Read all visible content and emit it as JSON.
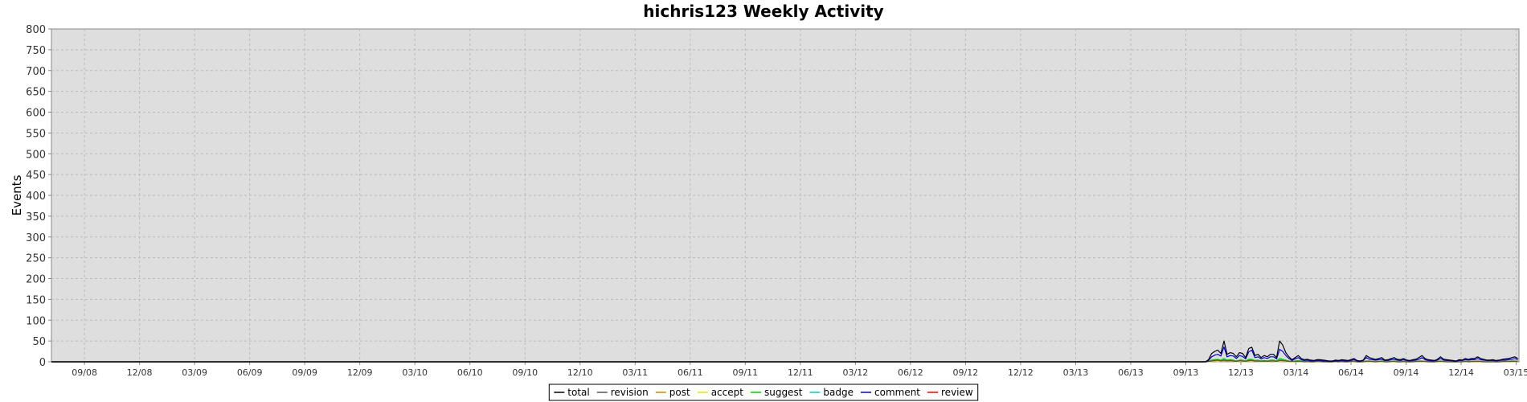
{
  "chart_data": {
    "type": "line",
    "title": "hichris123 Weekly Activity",
    "xlabel": "",
    "ylabel": "Events",
    "ylim": [
      0,
      800
    ],
    "y_ticks": [
      0,
      50,
      100,
      150,
      200,
      250,
      300,
      350,
      400,
      450,
      500,
      550,
      600,
      650,
      700,
      750,
      800
    ],
    "x_tick_labels": [
      "09/08",
      "12/08",
      "03/09",
      "06/09",
      "09/09",
      "12/09",
      "03/10",
      "06/10",
      "09/10",
      "12/10",
      "03/11",
      "06/11",
      "09/11",
      "12/11",
      "03/12",
      "06/12",
      "09/12",
      "12/12",
      "03/13",
      "06/13",
      "09/13",
      "12/13",
      "03/14",
      "06/14",
      "09/14",
      "12/14",
      "03/15"
    ],
    "grid": true,
    "legend_placement": "bottom",
    "x_quarter_range": [
      -0.6,
      26.05
    ],
    "activity_start_quarter": 20.3,
    "series": [
      {
        "name": "total",
        "color": "#000000",
        "values": [
          0,
          0,
          5,
          20,
          25,
          28,
          20,
          50,
          18,
          22,
          20,
          12,
          22,
          20,
          10,
          32,
          35,
          15,
          18,
          10,
          15,
          12,
          18,
          18,
          10,
          50,
          40,
          22,
          12,
          5,
          10,
          15,
          8,
          5,
          6,
          4,
          3,
          5,
          5,
          4,
          3,
          2,
          2,
          4,
          3,
          5,
          4,
          3,
          5,
          8,
          3,
          2,
          4,
          15,
          10,
          8,
          6,
          8,
          10,
          4,
          5,
          8,
          10,
          6,
          5,
          8,
          4,
          3,
          5,
          6,
          10,
          15,
          8,
          5,
          4,
          3,
          6,
          12,
          6,
          5,
          4,
          3,
          2,
          5,
          4,
          8,
          6,
          8,
          8,
          12,
          8,
          6,
          4,
          4,
          5,
          3,
          4,
          6,
          7,
          8,
          10,
          12,
          8
        ]
      },
      {
        "name": "revision",
        "color": "#555555",
        "values": [
          0,
          0,
          1,
          2,
          3,
          4,
          2,
          4,
          2,
          3,
          2,
          1,
          3,
          2,
          1,
          3,
          3,
          2,
          2,
          1,
          2,
          1,
          2,
          2,
          1,
          3,
          3,
          2,
          1,
          1,
          1,
          1,
          1,
          0,
          1,
          0,
          0,
          1,
          1,
          0,
          0,
          0,
          0,
          1,
          0,
          1,
          0,
          0,
          1,
          1,
          0,
          0,
          0,
          1,
          1,
          1,
          0,
          1,
          1,
          0,
          0,
          1,
          1,
          0,
          0,
          1,
          0,
          0,
          0,
          1,
          1,
          1,
          1,
          0,
          0,
          0,
          1,
          1,
          1,
          0,
          0,
          0,
          0,
          0,
          0,
          1,
          0,
          1,
          1,
          1,
          1,
          0,
          0,
          0,
          0,
          0,
          0,
          1,
          1,
          1,
          1,
          1,
          1
        ]
      },
      {
        "name": "post",
        "color": "#cc8800",
        "values": [
          0,
          0,
          1,
          2,
          2,
          3,
          2,
          3,
          2,
          2,
          2,
          1,
          2,
          2,
          1,
          2,
          3,
          1,
          2,
          1,
          1,
          1,
          2,
          2,
          1,
          3,
          2,
          2,
          1,
          1,
          1,
          1,
          1,
          0,
          1,
          0,
          0,
          1,
          1,
          0,
          0,
          0,
          0,
          1,
          0,
          1,
          0,
          0,
          1,
          1,
          0,
          0,
          0,
          2,
          1,
          1,
          1,
          1,
          1,
          0,
          0,
          1,
          1,
          1,
          0,
          1,
          0,
          0,
          1,
          1,
          1,
          2,
          1,
          1,
          0,
          0,
          1,
          1,
          1,
          1,
          0,
          0,
          0,
          1,
          0,
          1,
          1,
          1,
          1,
          2,
          1,
          1,
          0,
          0,
          1,
          0,
          0,
          1,
          1,
          1,
          1,
          2,
          1
        ]
      },
      {
        "name": "accept",
        "color": "#e6e600",
        "values": [
          0,
          0,
          0,
          1,
          1,
          1,
          1,
          2,
          1,
          1,
          1,
          0,
          1,
          1,
          0,
          1,
          1,
          1,
          1,
          0,
          1,
          0,
          1,
          1,
          0,
          1,
          1,
          1,
          0,
          0,
          0,
          1,
          0,
          0,
          0,
          0,
          0,
          0,
          0,
          0,
          0,
          0,
          0,
          0,
          0,
          0,
          0,
          0,
          0,
          0,
          0,
          0,
          0,
          1,
          0,
          0,
          0,
          0,
          0,
          0,
          0,
          0,
          0,
          0,
          0,
          0,
          0,
          0,
          0,
          0,
          0,
          1,
          0,
          0,
          0,
          0,
          0,
          0,
          0,
          0,
          0,
          0,
          0,
          0,
          0,
          0,
          0,
          0,
          0,
          1,
          0,
          0,
          0,
          0,
          0,
          0,
          0,
          0,
          0,
          0,
          0,
          1,
          0
        ]
      },
      {
        "name": "suggest",
        "color": "#00cc00",
        "values": [
          0,
          0,
          1,
          4,
          5,
          6,
          4,
          8,
          4,
          5,
          4,
          2,
          4,
          4,
          2,
          6,
          6,
          3,
          4,
          2,
          3,
          2,
          4,
          4,
          2,
          8,
          6,
          4,
          2,
          1,
          2,
          3,
          2,
          1,
          1,
          1,
          1,
          1,
          1,
          1,
          0,
          0,
          0,
          1,
          1,
          1,
          1,
          0,
          1,
          1,
          0,
          0,
          1,
          2,
          2,
          1,
          1,
          1,
          2,
          1,
          1,
          1,
          2,
          1,
          1,
          1,
          1,
          0,
          1,
          1,
          2,
          2,
          1,
          1,
          1,
          0,
          1,
          2,
          1,
          1,
          1,
          0,
          0,
          1,
          1,
          1,
          1,
          1,
          1,
          2,
          1,
          1,
          1,
          1,
          1,
          0,
          1,
          1,
          1,
          1,
          2,
          2,
          1
        ]
      },
      {
        "name": "badge",
        "color": "#00cccc",
        "values": [
          0,
          0,
          1,
          3,
          3,
          4,
          3,
          5,
          3,
          3,
          3,
          2,
          3,
          3,
          2,
          4,
          4,
          2,
          3,
          2,
          2,
          2,
          3,
          3,
          2,
          5,
          4,
          3,
          2,
          1,
          2,
          2,
          1,
          1,
          1,
          1,
          1,
          1,
          1,
          1,
          0,
          0,
          0,
          1,
          1,
          1,
          1,
          0,
          1,
          1,
          0,
          0,
          1,
          2,
          2,
          1,
          1,
          1,
          2,
          1,
          1,
          1,
          2,
          1,
          1,
          1,
          1,
          0,
          1,
          1,
          2,
          2,
          1,
          1,
          1,
          0,
          1,
          2,
          1,
          1,
          1,
          0,
          0,
          1,
          1,
          1,
          1,
          1,
          1,
          2,
          1,
          1,
          1,
          1,
          1,
          0,
          1,
          1,
          1,
          1,
          2,
          2,
          1
        ]
      },
      {
        "name": "comment",
        "color": "#0000dd",
        "values": [
          0,
          0,
          3,
          12,
          16,
          18,
          14,
          36,
          12,
          15,
          14,
          8,
          15,
          13,
          7,
          24,
          28,
          10,
          12,
          7,
          10,
          8,
          12,
          12,
          7,
          30,
          25,
          15,
          8,
          3,
          7,
          10,
          5,
          3,
          4,
          2,
          2,
          3,
          3,
          2,
          2,
          1,
          1,
          2,
          2,
          3,
          2,
          2,
          3,
          5,
          2,
          1,
          3,
          10,
          6,
          5,
          4,
          5,
          6,
          3,
          3,
          5,
          6,
          4,
          3,
          5,
          3,
          2,
          3,
          4,
          6,
          10,
          5,
          3,
          2,
          2,
          4,
          8,
          4,
          3,
          3,
          2,
          1,
          3,
          3,
          5,
          4,
          5,
          5,
          8,
          5,
          4,
          3,
          3,
          3,
          2,
          3,
          4,
          4,
          5,
          6,
          8,
          5
        ]
      },
      {
        "name": "review",
        "color": "#ff0000",
        "values": [
          0,
          0,
          0,
          1,
          1,
          2,
          1,
          2,
          1,
          1,
          1,
          1,
          1,
          1,
          1,
          2,
          2,
          1,
          1,
          1,
          1,
          1,
          1,
          1,
          1,
          2,
          2,
          1,
          1,
          0,
          1,
          1,
          1,
          0,
          0,
          0,
          0,
          0,
          0,
          0,
          0,
          0,
          0,
          0,
          0,
          0,
          0,
          0,
          0,
          1,
          0,
          0,
          0,
          1,
          1,
          0,
          0,
          0,
          1,
          0,
          0,
          0,
          1,
          0,
          0,
          0,
          0,
          0,
          0,
          0,
          1,
          1,
          0,
          0,
          0,
          0,
          0,
          1,
          0,
          0,
          0,
          0,
          0,
          0,
          0,
          1,
          0,
          0,
          0,
          1,
          0,
          0,
          0,
          0,
          0,
          0,
          0,
          0,
          0,
          1,
          1,
          1,
          0
        ]
      }
    ]
  }
}
